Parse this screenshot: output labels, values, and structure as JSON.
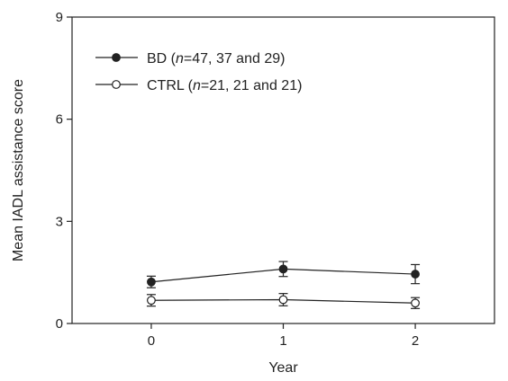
{
  "chart_data": {
    "type": "line",
    "title": "",
    "xlabel": "Year",
    "ylabel": "Mean IADL assistance score",
    "x": [
      0,
      1,
      2
    ],
    "xlim": [
      -0.6,
      2.6
    ],
    "ylim": [
      0,
      9
    ],
    "yticks": [
      0,
      3,
      6,
      9
    ],
    "xticks": [
      0,
      1,
      2
    ],
    "grid": false,
    "legend_position": "top-left",
    "series": [
      {
        "name_prefix": "BD (",
        "name_italic": "n",
        "name_suffix": "=47, 37 and 29)",
        "marker": "filled-circle",
        "values": [
          1.22,
          1.6,
          1.45
        ],
        "error": [
          0.17,
          0.22,
          0.28
        ]
      },
      {
        "name_prefix": "CTRL (",
        "name_italic": "n",
        "name_suffix": "=21, 21 and 21)",
        "marker": "open-circle",
        "values": [
          0.68,
          0.7,
          0.6
        ],
        "error": [
          0.17,
          0.18,
          0.16
        ]
      }
    ]
  }
}
